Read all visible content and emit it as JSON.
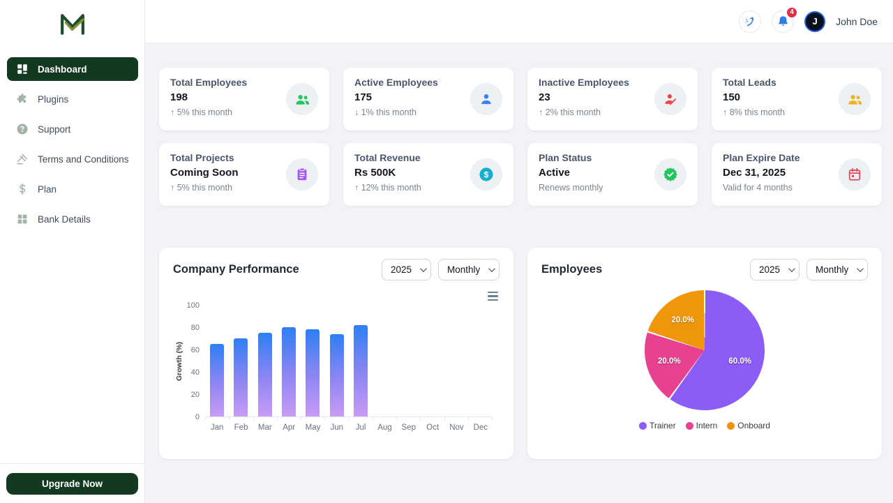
{
  "header": {
    "user_name": "John Doe",
    "notification_count": "4",
    "avatar_initial": "J"
  },
  "sidebar": {
    "items": [
      {
        "label": "Dashboard",
        "icon": "dashboard-grid-icon",
        "active": true
      },
      {
        "label": "Plugins",
        "icon": "puzzle-icon",
        "active": false
      },
      {
        "label": "Support",
        "icon": "help-circle-icon",
        "active": false
      },
      {
        "label": "Terms and Conditions",
        "icon": "gavel-icon",
        "active": false
      },
      {
        "label": "Plan",
        "icon": "dollar-icon",
        "active": false
      },
      {
        "label": "Bank Details",
        "icon": "bank-grid-icon",
        "active": false
      }
    ],
    "upgrade_label": "Upgrade Now"
  },
  "stat_cards": [
    {
      "title": "Total Employees",
      "value": "198",
      "subtitle": "↑ 5% this month",
      "icon": "users-icon",
      "icon_color": "#22c55e"
    },
    {
      "title": "Active Employees",
      "value": "175",
      "subtitle": "↓ 1% this month",
      "icon": "user-icon",
      "icon_color": "#3b82f6"
    },
    {
      "title": "Inactive Employees",
      "value": "23",
      "subtitle": "↑ 2% this month",
      "icon": "user-off-icon",
      "icon_color": "#ef4444"
    },
    {
      "title": "Total Leads",
      "value": "150",
      "subtitle": "↑ 8% this month",
      "icon": "users-icon",
      "icon_color": "#efb320"
    },
    {
      "title": "Total Projects",
      "value": "Coming Soon",
      "subtitle": "↑ 5% this month",
      "icon": "clipboard-icon",
      "icon_color": "#a855f7"
    },
    {
      "title": "Total Revenue",
      "value": "Rs 500K",
      "subtitle": "↑ 12% this month",
      "icon": "dollar-circle-icon",
      "icon_color": "#17afcf"
    },
    {
      "title": "Plan Status",
      "value": "Active",
      "subtitle": "Renews monthly",
      "icon": "check-badge-icon",
      "icon_color": "#22c55e"
    },
    {
      "title": "Plan Expire Date",
      "value": "Dec 31, 2025",
      "subtitle": "Valid for 4 months",
      "icon": "calendar-icon",
      "icon_color": "#ec4058"
    }
  ],
  "panels": {
    "performance": {
      "title": "Company Performance",
      "year": "2025",
      "period": "Monthly"
    },
    "employees": {
      "title": "Employees",
      "year": "2025",
      "period": "Monthly"
    }
  },
  "chart_data": [
    {
      "type": "bar",
      "title": "Company Performance",
      "categories": [
        "Jan",
        "Feb",
        "Mar",
        "Apr",
        "May",
        "Jun",
        "Jul",
        "Aug",
        "Sep",
        "Oct",
        "Nov",
        "Dec"
      ],
      "values": [
        65,
        70,
        75,
        80,
        78,
        74,
        82,
        0,
        0,
        0,
        0,
        0
      ],
      "xlabel": "",
      "ylabel": "Growth (%)",
      "ylim": [
        0,
        100
      ],
      "yticks": [
        0,
        20,
        40,
        60,
        80,
        100
      ],
      "grid": false,
      "bar_gradient": [
        "#2e7ff5",
        "#8f86f3",
        "#c89cf4"
      ]
    },
    {
      "type": "pie",
      "title": "Employees",
      "labels": [
        "Trainer",
        "Intern",
        "Onboard"
      ],
      "values": [
        60,
        20,
        20
      ],
      "display_labels": [
        "60.0%",
        "20.0%",
        "20.0%"
      ],
      "colors": [
        "#8c5cf6",
        "#e8418f",
        "#f0960c"
      ],
      "legend_position": "bottom"
    }
  ],
  "theme": {
    "primary_green": "#123a20",
    "accent_blue": "#2b7de9",
    "badge_red": "#e02d45",
    "content_bg": "#f1f3f6"
  }
}
